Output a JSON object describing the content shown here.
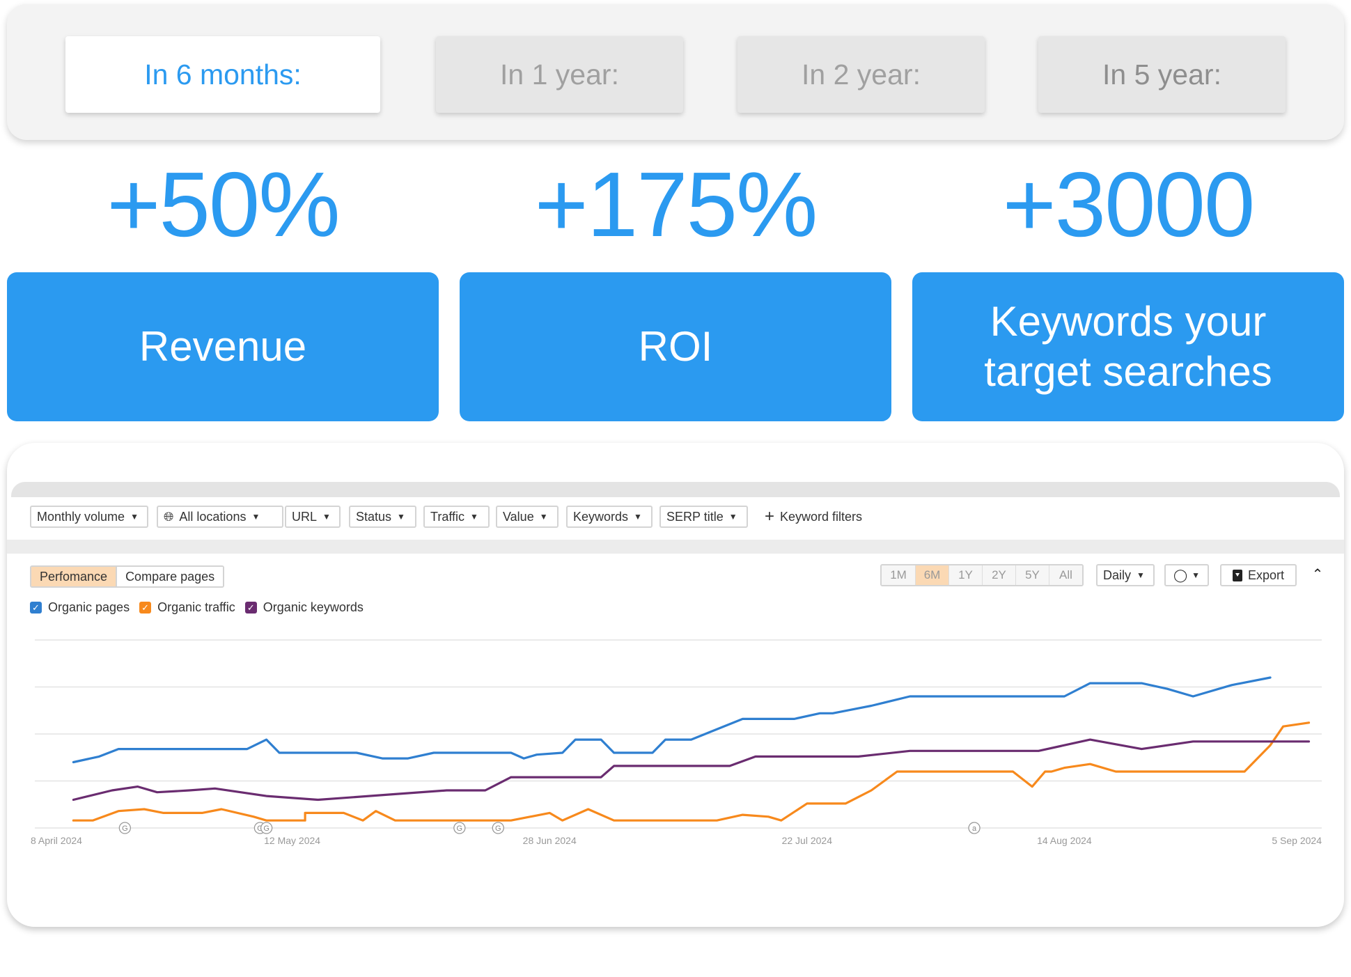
{
  "period_tabs": [
    {
      "label": "In 6 months:",
      "active": true
    },
    {
      "label": "In 1 year:",
      "active": false
    },
    {
      "label": "In 2 year:",
      "active": false
    },
    {
      "label": "In 5 year:",
      "active": false
    }
  ],
  "metrics": [
    {
      "value": "+50%",
      "label": "Revenue"
    },
    {
      "value": "+175%",
      "label": "ROI"
    },
    {
      "value": "+3000",
      "label": "Keywords your target searches"
    }
  ],
  "filters": {
    "monthly_volume": "Monthly volume",
    "all_locations": "All locations",
    "url": "URL",
    "status": "Status",
    "traffic": "Traffic",
    "value": "Value",
    "keywords": "Keywords",
    "serp_title": "SERP title",
    "keyword_filters": "Keyword filters"
  },
  "view_tabs": [
    {
      "label": "Perfomance",
      "active": true
    },
    {
      "label": "Compare pages",
      "active": false
    }
  ],
  "ranges": [
    "1M",
    "6M",
    "1Y",
    "2Y",
    "5Y",
    "All"
  ],
  "active_range": "6M",
  "granularity": "Daily",
  "export_label": "Export",
  "colors": {
    "accent": "#2b9af0",
    "pages": "#2f7fd0",
    "traffic": "#f7891c",
    "keywords": "#6a2c70"
  },
  "chart_data": {
    "type": "line",
    "x_tick_labels": [
      "8 April 2024",
      "12 May 2024",
      "28 Jun 2024",
      "22 Jul 2024",
      "14 Aug 2024",
      "5 Sep 2024"
    ],
    "x_range": [
      "2024-04-08",
      "2024-09-05"
    ],
    "grid": true,
    "legend": "top-left",
    "series": [
      {
        "name": "Organic pages",
        "color": "#2f7fd0",
        "points": [
          [
            0.03,
            0.35
          ],
          [
            0.05,
            0.38
          ],
          [
            0.065,
            0.42
          ],
          [
            0.1,
            0.42
          ],
          [
            0.14,
            0.42
          ],
          [
            0.165,
            0.42
          ],
          [
            0.18,
            0.47
          ],
          [
            0.19,
            0.4
          ],
          [
            0.22,
            0.4
          ],
          [
            0.25,
            0.4
          ],
          [
            0.27,
            0.37
          ],
          [
            0.29,
            0.37
          ],
          [
            0.31,
            0.4
          ],
          [
            0.35,
            0.4
          ],
          [
            0.37,
            0.4
          ],
          [
            0.38,
            0.37
          ],
          [
            0.39,
            0.39
          ],
          [
            0.41,
            0.4
          ],
          [
            0.42,
            0.47
          ],
          [
            0.44,
            0.47
          ],
          [
            0.45,
            0.4
          ],
          [
            0.48,
            0.4
          ],
          [
            0.49,
            0.47
          ],
          [
            0.51,
            0.47
          ],
          [
            0.55,
            0.58
          ],
          [
            0.59,
            0.58
          ],
          [
            0.61,
            0.61
          ],
          [
            0.62,
            0.61
          ],
          [
            0.65,
            0.65
          ],
          [
            0.68,
            0.7
          ],
          [
            0.72,
            0.7
          ],
          [
            0.76,
            0.7
          ],
          [
            0.8,
            0.7
          ],
          [
            0.82,
            0.77
          ],
          [
            0.86,
            0.77
          ],
          [
            0.88,
            0.74
          ],
          [
            0.9,
            0.7
          ],
          [
            0.93,
            0.76
          ],
          [
            0.96,
            0.8
          ]
        ]
      },
      {
        "name": "Organic traffic",
        "color": "#f7891c",
        "points": [
          [
            0.03,
            0.04
          ],
          [
            0.045,
            0.04
          ],
          [
            0.065,
            0.09
          ],
          [
            0.085,
            0.1
          ],
          [
            0.1,
            0.08
          ],
          [
            0.13,
            0.08
          ],
          [
            0.145,
            0.1
          ],
          [
            0.17,
            0.06
          ],
          [
            0.18,
            0.04
          ],
          [
            0.21,
            0.04
          ],
          [
            0.21,
            0.08
          ],
          [
            0.24,
            0.08
          ],
          [
            0.255,
            0.04
          ],
          [
            0.265,
            0.09
          ],
          [
            0.28,
            0.04
          ],
          [
            0.35,
            0.04
          ],
          [
            0.37,
            0.04
          ],
          [
            0.4,
            0.08
          ],
          [
            0.41,
            0.04
          ],
          [
            0.43,
            0.1
          ],
          [
            0.45,
            0.04
          ],
          [
            0.51,
            0.04
          ],
          [
            0.52,
            0.04
          ],
          [
            0.53,
            0.04
          ],
          [
            0.55,
            0.07
          ],
          [
            0.57,
            0.06
          ],
          [
            0.58,
            0.04
          ],
          [
            0.6,
            0.13
          ],
          [
            0.62,
            0.13
          ],
          [
            0.63,
            0.13
          ],
          [
            0.65,
            0.2
          ],
          [
            0.67,
            0.3
          ],
          [
            0.72,
            0.3
          ],
          [
            0.76,
            0.3
          ],
          [
            0.775,
            0.22
          ],
          [
            0.785,
            0.3
          ],
          [
            0.79,
            0.3
          ],
          [
            0.8,
            0.32
          ],
          [
            0.82,
            0.34
          ],
          [
            0.84,
            0.3
          ],
          [
            0.86,
            0.3
          ],
          [
            0.9,
            0.3
          ],
          [
            0.94,
            0.3
          ],
          [
            0.96,
            0.44
          ],
          [
            0.97,
            0.54
          ],
          [
            0.99,
            0.56
          ]
        ]
      },
      {
        "name": "Organic keywords",
        "color": "#6a2c70",
        "points": [
          [
            0.03,
            0.15
          ],
          [
            0.06,
            0.2
          ],
          [
            0.08,
            0.22
          ],
          [
            0.095,
            0.19
          ],
          [
            0.12,
            0.2
          ],
          [
            0.14,
            0.21
          ],
          [
            0.18,
            0.17
          ],
          [
            0.22,
            0.15
          ],
          [
            0.24,
            0.16
          ],
          [
            0.28,
            0.18
          ],
          [
            0.32,
            0.2
          ],
          [
            0.35,
            0.2
          ],
          [
            0.37,
            0.27
          ],
          [
            0.4,
            0.27
          ],
          [
            0.44,
            0.27
          ],
          [
            0.45,
            0.33
          ],
          [
            0.5,
            0.33
          ],
          [
            0.54,
            0.33
          ],
          [
            0.56,
            0.38
          ],
          [
            0.6,
            0.38
          ],
          [
            0.64,
            0.38
          ],
          [
            0.68,
            0.41
          ],
          [
            0.72,
            0.41
          ],
          [
            0.76,
            0.41
          ],
          [
            0.78,
            0.41
          ],
          [
            0.82,
            0.47
          ],
          [
            0.86,
            0.42
          ],
          [
            0.9,
            0.46
          ],
          [
            0.94,
            0.46
          ],
          [
            0.99,
            0.46
          ]
        ]
      }
    ],
    "event_markers": [
      {
        "label": "G",
        "x": 0.07
      },
      {
        "label": "G",
        "x": 0.175
      },
      {
        "label": "G",
        "x": 0.18
      },
      {
        "label": "G",
        "x": 0.33
      },
      {
        "label": "G",
        "x": 0.36
      },
      {
        "label": "a",
        "x": 0.73
      }
    ]
  }
}
